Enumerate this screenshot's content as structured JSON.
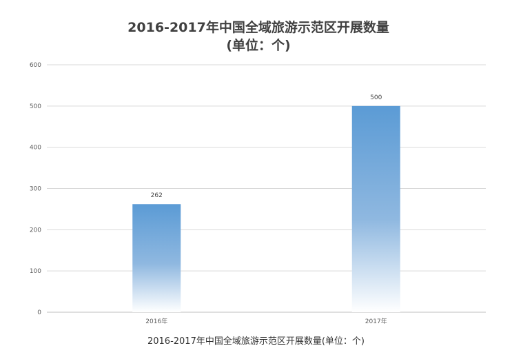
{
  "chart_data": {
    "type": "bar",
    "title_lines": [
      "2016-2017年中国全域旅游示范区开展数量",
      "(单位：个)"
    ],
    "categories": [
      "2016年",
      "2017年"
    ],
    "values": [
      262,
      500
    ],
    "value_labels": [
      "262",
      "500"
    ],
    "xlabel": "",
    "ylabel": "",
    "ylim": [
      0,
      600
    ],
    "y_ticks": [
      0,
      100,
      200,
      300,
      400,
      500,
      600
    ],
    "grid": true,
    "legend": "none",
    "bar_color_top": "#5b9bd5",
    "bar_color_bottom": "#ffffff"
  },
  "caption": "2016-2017年中国全域旅游示范区开展数量(单位：个)"
}
